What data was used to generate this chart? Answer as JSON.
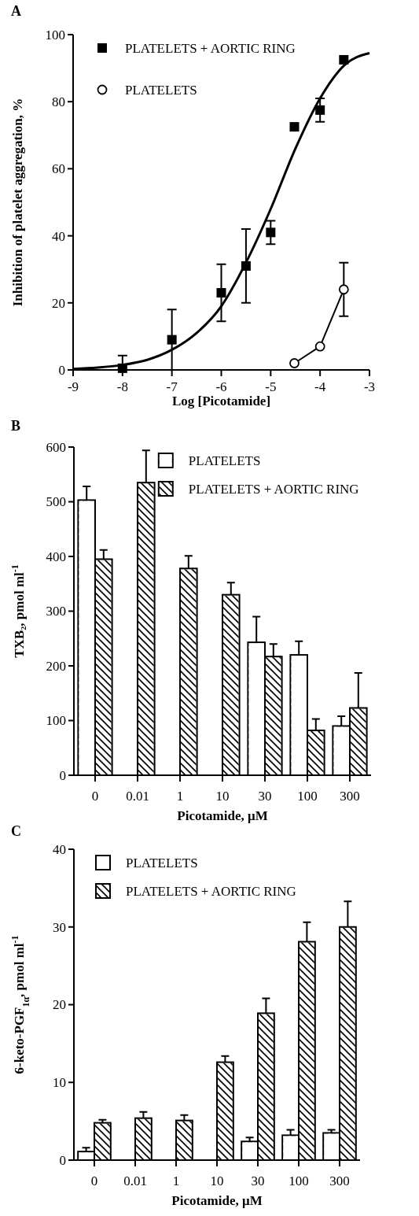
{
  "chart_data": [
    {
      "type": "scatter",
      "title": "A",
      "xlabel": "Log  [Picotamide]",
      "ylabel": "Inhibition of platelet aggregation, %",
      "xlim": [
        -9,
        -3
      ],
      "xticks": [
        -9,
        -8,
        -7,
        -6,
        -5,
        -4,
        -3
      ],
      "ylim": [
        0,
        100
      ],
      "yticks": [
        0,
        20,
        40,
        60,
        80,
        100
      ],
      "legend": "top left",
      "series": [
        {
          "name": "PLATELETS + AORTIC RING",
          "type": "scatter",
          "marker": "square",
          "color": "#000000",
          "x": [
            -8,
            -7,
            -6,
            -5.5,
            -5,
            -4.52,
            -4,
            -3.52
          ],
          "values": [
            0.5,
            9,
            23,
            31,
            41,
            72.5,
            77.5,
            92.5
          ],
          "errors": [
            [
              0.5,
              4.3
            ],
            9,
            8.5,
            11,
            3.5,
            null,
            3.5,
            null
          ]
        },
        {
          "name": "PLATELETS",
          "type": "line",
          "marker": "circle",
          "color": "#000000",
          "x": [
            -4.52,
            -4,
            -3.52
          ],
          "values": [
            2,
            7,
            24
          ],
          "errors": [
            null,
            null,
            8
          ]
        },
        {
          "type": "line",
          "marker": "none",
          "color": "#000000",
          "x": [
            -9,
            -8.5,
            -8,
            -7.5,
            -7,
            -6.5,
            -6,
            -5.5,
            -5,
            -4.5,
            -4,
            -3.5,
            -3
          ],
          "values": [
            0.3,
            0.7,
            1.5,
            3,
            6,
            11,
            19,
            32,
            48,
            66,
            81,
            91,
            94.5
          ]
        }
      ]
    },
    {
      "type": "bar",
      "title": "B",
      "xlabel": "Picotamide, μM",
      "ylabel": "TXB₂, pmol ml$^{-1}$",
      "categories": [
        "0",
        "0.01",
        "1",
        "10",
        "30",
        "100",
        "300"
      ],
      "ylim": [
        0,
        600
      ],
      "yticks": [
        0,
        100,
        200,
        300,
        400,
        500,
        600
      ],
      "legend": "top right",
      "series": [
        {
          "name": "PLATELETS",
          "color": "#ffffff",
          "values": [
            503,
            null,
            null,
            null,
            243,
            220,
            90
          ],
          "errors": [
            25,
            null,
            null,
            null,
            47,
            25,
            18
          ]
        },
        {
          "name": "PLATELETS + AORTIC RING",
          "color": "#000000",
          "values": [
            395,
            535,
            378,
            330,
            217,
            82,
            123
          ],
          "errors": [
            17,
            59,
            23,
            22,
            23,
            21,
            64
          ]
        }
      ]
    },
    {
      "type": "bar",
      "title": "C",
      "xlabel": "Picotamide, μM",
      "ylabel": "6-keto-PGF$_{1α}$, pmol ml$^{-1}$",
      "categories": [
        "0",
        "0.01",
        "1",
        "10",
        "30",
        "100",
        "300"
      ],
      "ylim": [
        0,
        40
      ],
      "yticks": [
        0,
        10,
        20,
        30,
        40
      ],
      "legend": "top left",
      "series": [
        {
          "name": "PLATELETS",
          "color": "#ffffff",
          "values": [
            1.1,
            null,
            null,
            null,
            2.4,
            3.2,
            3.5
          ],
          "errors": [
            0.5,
            null,
            null,
            null,
            0.5,
            0.7,
            0.4
          ]
        },
        {
          "name": "PLATELETS + AORTIC RING",
          "color": "#000000",
          "values": [
            4.8,
            5.4,
            5.1,
            12.6,
            18.9,
            28.1,
            30
          ],
          "errors": [
            0.4,
            0.8,
            0.7,
            0.8,
            1.9,
            2.5,
            3.3
          ]
        }
      ]
    }
  ]
}
